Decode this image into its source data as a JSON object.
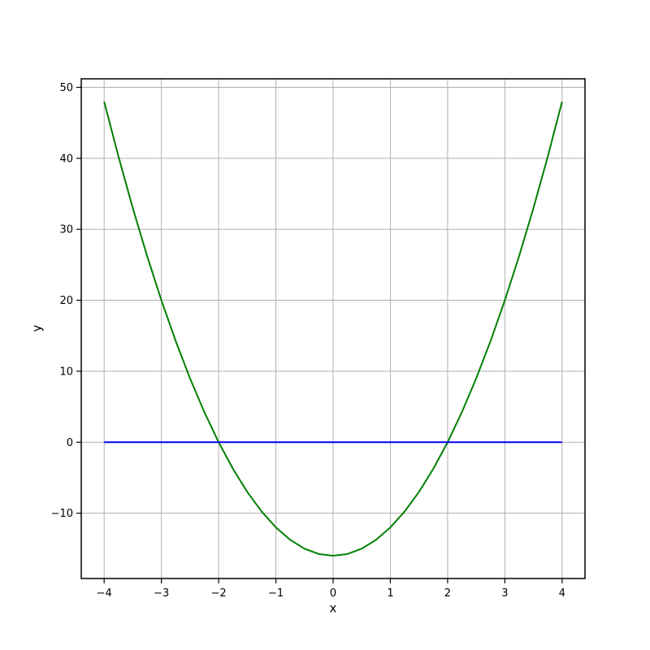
{
  "chart_data": {
    "type": "line",
    "title": "",
    "xlabel": "x",
    "ylabel": "y",
    "xlim": [
      -4.4,
      4.4
    ],
    "ylim": [
      -19.2,
      51.2
    ],
    "x_ticks": [
      -4,
      -3,
      -2,
      -1,
      0,
      1,
      2,
      3,
      4
    ],
    "x_tick_labels": [
      "−4",
      "−3",
      "−2",
      "−1",
      "0",
      "1",
      "2",
      "3",
      "4"
    ],
    "y_ticks": [
      -10,
      0,
      10,
      20,
      30,
      40,
      50
    ],
    "y_tick_labels": [
      "−10",
      "0",
      "10",
      "20",
      "30",
      "40",
      "50"
    ],
    "grid": true,
    "legend": "none",
    "background_color": "#ffffff",
    "grid_color": "#b0b0b0",
    "frame_color": "#000000",
    "tick_label_color": "#000000",
    "series": [
      {
        "id": "green-parabola",
        "color": "#008000",
        "line_width": 2,
        "x": [
          -4,
          -3.75,
          -3.5,
          -3.25,
          -3,
          -2.75,
          -2.5,
          -2.25,
          -2,
          -1.75,
          -1.5,
          -1.25,
          -1,
          -0.75,
          -0.5,
          -0.25,
          0,
          0.25,
          0.5,
          0.75,
          1,
          1.25,
          1.5,
          1.75,
          2,
          2.25,
          2.5,
          2.75,
          3,
          3.25,
          3.5,
          3.75,
          4
        ],
        "y": [
          48,
          40.25,
          33,
          26.25,
          20,
          14.25,
          9,
          4.25,
          0,
          -3.75,
          -7,
          -9.75,
          -12,
          -13.75,
          -15,
          -15.75,
          -16,
          -15.75,
          -15,
          -13.75,
          -12,
          -9.75,
          -7,
          -3.75,
          0,
          4.25,
          9,
          14.25,
          20,
          26.25,
          33,
          40.25,
          48
        ]
      },
      {
        "id": "blue-horizontal-line",
        "color": "#0000ff",
        "line_width": 2,
        "x": [
          -4,
          4
        ],
        "y": [
          0,
          0
        ]
      }
    ]
  }
}
